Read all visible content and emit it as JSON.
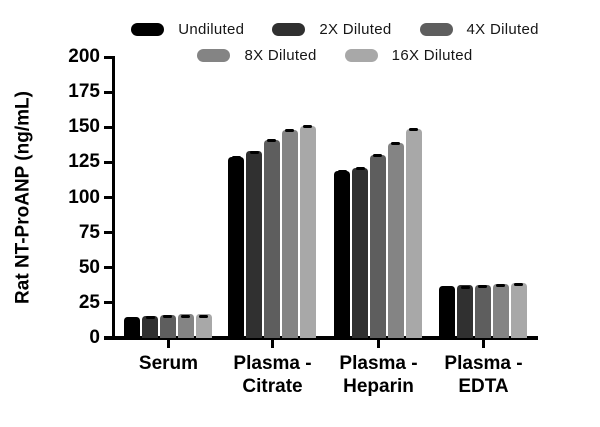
{
  "chart_data": {
    "type": "bar",
    "title": "",
    "xlabel": "",
    "ylabel": "Rat NT-ProANP (ng/mL)",
    "ylim": [
      0,
      200
    ],
    "ytick_step": 25,
    "yticks": [
      0,
      25,
      50,
      75,
      100,
      125,
      150,
      175,
      200
    ],
    "grid": false,
    "legend_position": "top",
    "error_bars": "sd-upper",
    "categories": [
      "Serum",
      "Plasma - Citrate",
      "Plasma - Heparin",
      "Plasma - EDTA"
    ],
    "category_label_lines": [
      [
        "Serum"
      ],
      [
        "Plasma -",
        "Citrate"
      ],
      [
        "Plasma -",
        "Heparin"
      ],
      [
        "Plasma -",
        "EDTA"
      ]
    ],
    "series": [
      {
        "name": "Undiluted",
        "color": "#000000",
        "values": [
          15.0,
          129,
          119,
          37.0
        ],
        "errors": [
          0.5,
          1.5,
          1.5,
          0.8
        ]
      },
      {
        "name": "2X Diluted",
        "color": "#303030",
        "values": [
          16.0,
          133,
          121,
          37.5
        ],
        "errors": [
          0.7,
          1.5,
          1.5,
          0.8
        ]
      },
      {
        "name": "4X Diluted",
        "color": "#5e5e5e",
        "values": [
          16.5,
          141,
          130,
          38.0
        ],
        "errors": [
          0.7,
          1.5,
          2.0,
          0.8
        ]
      },
      {
        "name": "8X Diluted",
        "color": "#848484",
        "values": [
          17.0,
          148,
          139,
          38.5
        ],
        "errors": [
          0.8,
          1.5,
          1.5,
          1.0
        ]
      },
      {
        "name": "16X Diluted",
        "color": "#a8a8a8",
        "values": [
          17.0,
          151,
          149,
          39.5
        ],
        "errors": [
          0.8,
          1.5,
          1.5,
          1.0
        ]
      }
    ]
  }
}
